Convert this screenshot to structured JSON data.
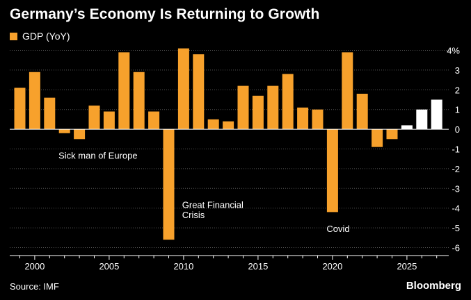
{
  "header": {
    "title": "Germany’s Economy Is Returning to Growth"
  },
  "legend": {
    "series_label": "GDP (YoY)"
  },
  "footer": {
    "source": "Source: IMF",
    "brand": "Bloomberg"
  },
  "colors": {
    "background": "#000000",
    "actual_bar": "#F7A12C",
    "forecast_bar": "#FFFFFF",
    "gridline": "#555555",
    "text": "#FFFFFF"
  },
  "chart_data": {
    "type": "bar",
    "title": "Germany’s Economy Is Returning to Growth",
    "xlabel": "",
    "ylabel": "",
    "x": [
      1999,
      2000,
      2001,
      2002,
      2003,
      2004,
      2005,
      2006,
      2007,
      2008,
      2009,
      2010,
      2011,
      2012,
      2013,
      2014,
      2015,
      2016,
      2017,
      2018,
      2019,
      2020,
      2021,
      2022,
      2023,
      2024,
      2025,
      2026,
      2027
    ],
    "series": [
      {
        "name": "GDP (YoY)",
        "values": [
          2.1,
          2.9,
          1.6,
          -0.2,
          -0.5,
          1.2,
          0.9,
          3.9,
          2.9,
          0.9,
          -5.6,
          4.1,
          3.8,
          0.5,
          0.4,
          2.2,
          1.7,
          2.2,
          2.8,
          1.1,
          1.0,
          -4.2,
          3.9,
          1.8,
          -0.9,
          -0.5,
          0.2,
          1.0,
          1.5
        ],
        "forecast": [
          false,
          false,
          false,
          false,
          false,
          false,
          false,
          false,
          false,
          false,
          false,
          false,
          false,
          false,
          false,
          false,
          false,
          false,
          false,
          false,
          false,
          false,
          false,
          false,
          false,
          false,
          true,
          true,
          true
        ]
      }
    ],
    "ylim": [
      -6,
      4
    ],
    "y_ticks": [
      -6,
      -5,
      -4,
      -3,
      -2,
      -1,
      0,
      1,
      2,
      3,
      4
    ],
    "y_tick_labels": [
      "-6",
      "-5",
      "-4",
      "-3",
      "-2",
      "-1",
      "0",
      "1",
      "2",
      "3",
      "4%"
    ],
    "x_ticks": [
      2000,
      2005,
      2010,
      2015,
      2020,
      2025
    ],
    "x_tick_labels": [
      "2000",
      "2005",
      "2010",
      "2015",
      "2020",
      "2025"
    ],
    "grid": true,
    "y_axis_side": "right",
    "legend_position": "top-left",
    "annotations": [
      {
        "text": "Sick man of Europe",
        "x": 2001.6,
        "y": -1.5
      },
      {
        "text": "Great Financial",
        "x": 2009.9,
        "y": -4.0
      },
      {
        "text": "Crisis",
        "x": 2009.9,
        "y": -4.5
      },
      {
        "text": "Covid",
        "x": 2019.6,
        "y": -5.2
      }
    ]
  }
}
